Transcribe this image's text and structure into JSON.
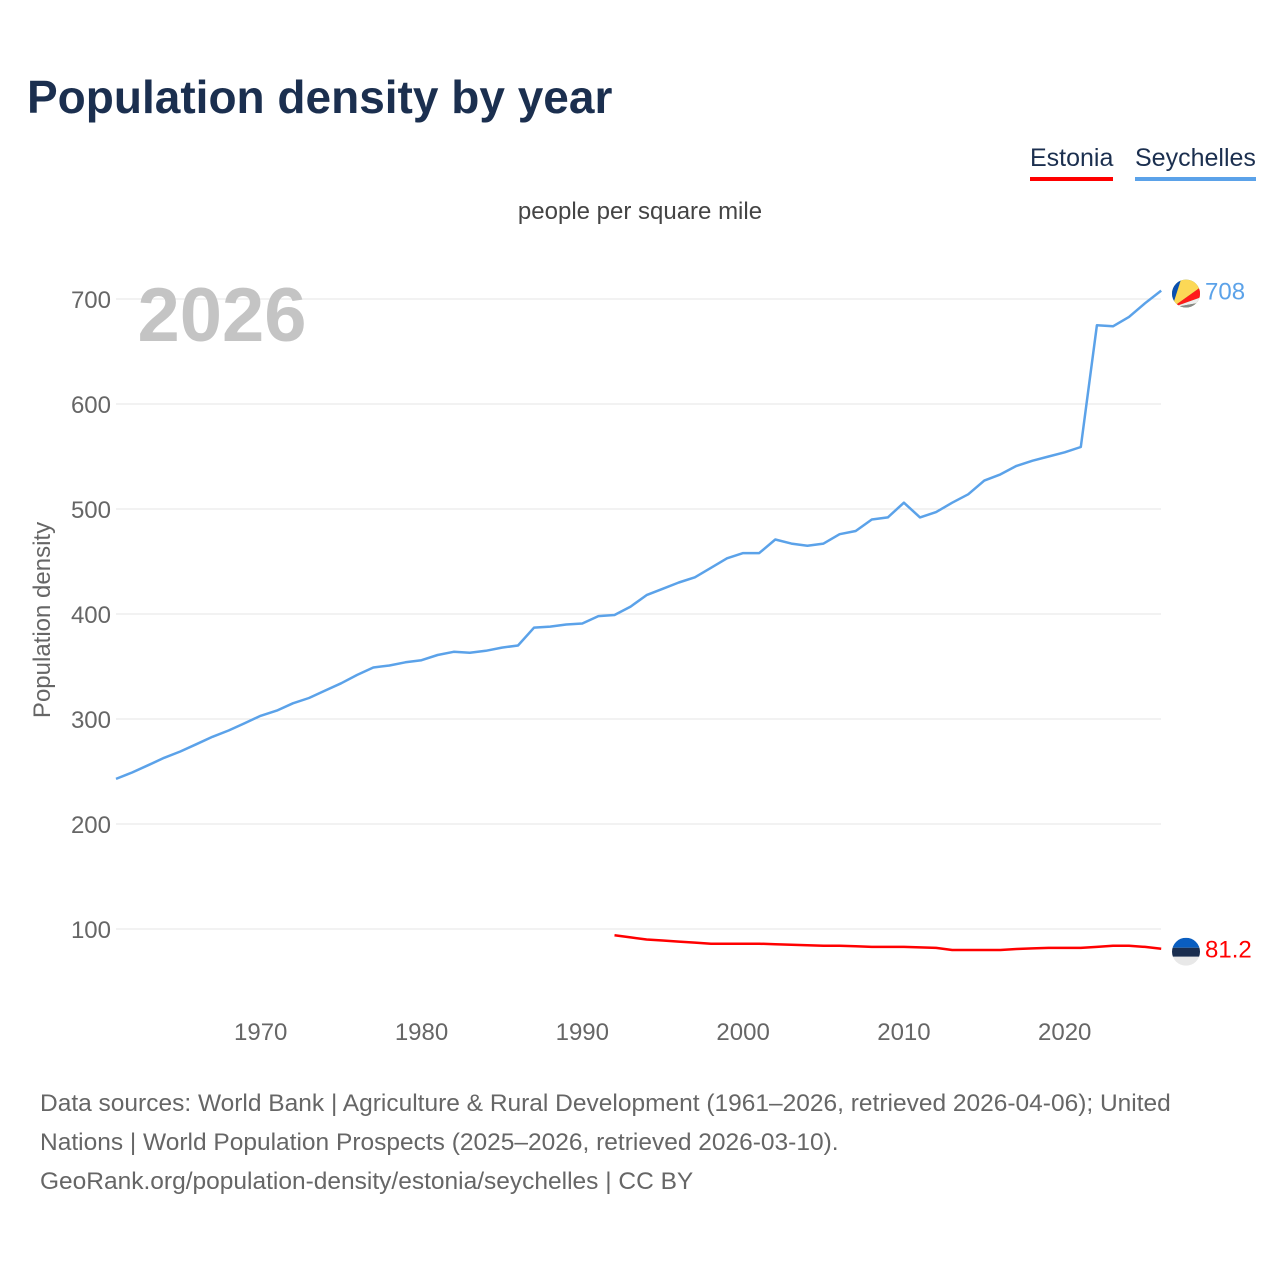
{
  "title": "Population density by year",
  "legend": [
    {
      "name": "Estonia",
      "color": "#ff0000"
    },
    {
      "name": "Seychelles",
      "color": "#5ba2e9"
    }
  ],
  "source_lines": [
    "Data sources: World Bank | Agriculture & Rural Development (1961–2026, retrieved 2026-04-06); United Nations | World Population Prospects (2025–2026, retrieved 2026-03-10).",
    "GeoRank.org/population-density/estonia/seychelles | CC BY"
  ],
  "chart_data": {
    "type": "line",
    "title": "Population density by year",
    "subtitle": "people per square mile",
    "ylabel": "Population density",
    "xlabel": "",
    "year_watermark": "2026",
    "xlim": [
      1961,
      2026
    ],
    "ylim": [
      30,
      730
    ],
    "xticks": [
      1970,
      1980,
      1990,
      2000,
      2010,
      2020
    ],
    "yticks": [
      100,
      200,
      300,
      400,
      500,
      600,
      700
    ],
    "grid": true,
    "legend_position": "top-right",
    "series": [
      {
        "name": "Seychelles",
        "color": "#5ba2e9",
        "end_label": "708",
        "start_year": 1961,
        "values": [
          243,
          249,
          256,
          263,
          269,
          276,
          283,
          289,
          296,
          303,
          308,
          315,
          320,
          327,
          334,
          342,
          349,
          351,
          354,
          356,
          361,
          364,
          363,
          365,
          368,
          370,
          387,
          388,
          390,
          391,
          398,
          399,
          407,
          418,
          424,
          430,
          435,
          444,
          453,
          458,
          458,
          471,
          467,
          465,
          467,
          476,
          479,
          490,
          492,
          506,
          492,
          497,
          506,
          514,
          527,
          533,
          541,
          546,
          550,
          554,
          559,
          675,
          674,
          683,
          696,
          708
        ]
      },
      {
        "name": "Estonia",
        "color": "#ff0000",
        "end_label": "81.2",
        "start_year": 1992,
        "values": [
          94,
          92,
          90,
          89,
          88,
          87,
          86,
          86,
          86,
          86,
          85.5,
          85,
          84.5,
          84,
          84,
          83.5,
          83,
          83,
          83,
          82.5,
          82,
          80,
          80,
          80,
          80,
          81,
          81.5,
          82,
          82,
          82,
          83,
          84,
          84,
          83,
          81.2
        ]
      }
    ]
  }
}
